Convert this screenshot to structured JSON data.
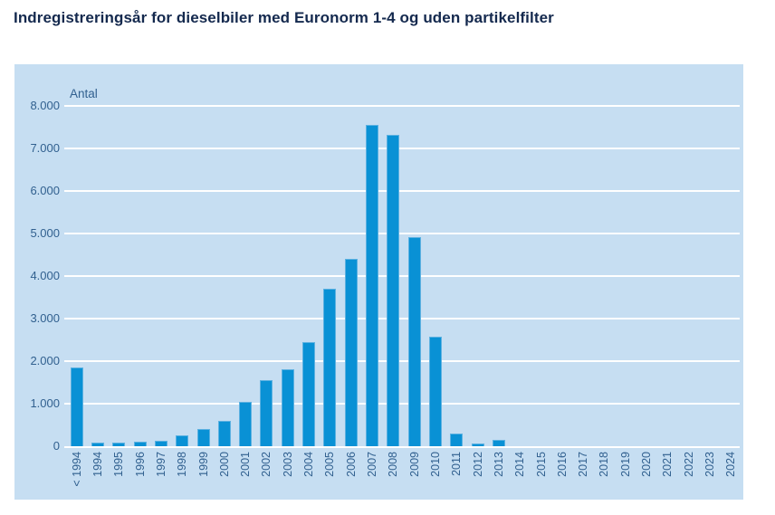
{
  "header": {
    "title": "Indregistreringsår for dieselbiler med Euronorm 1-4 og uden partikelfilter"
  },
  "colors": {
    "panel_background": "#c6def2",
    "bar_fill": "#0991d5",
    "bar_edge": "#5cb1e1",
    "gridline": "#ffffff",
    "title_text": "#14294e",
    "axis_text": "#31608f"
  },
  "chart_data": {
    "type": "bar",
    "title": "Indregistreringsår for dieselbiler med Euronorm 1-4 og uden partikelfilter",
    "xlabel": "",
    "ylabel": "Antal",
    "ylim": [
      0,
      8000
    ],
    "ytick_step": 1000,
    "ytick_labels": [
      "0",
      "1.000",
      "2.000",
      "3.000",
      "4.000",
      "5.000",
      "6.000",
      "7.000",
      "8.000"
    ],
    "grid": true,
    "legend": "none",
    "categories": [
      "< 1994",
      "1994",
      "1995",
      "1996",
      "1997",
      "1998",
      "1999",
      "2000",
      "2001",
      "2002",
      "2003",
      "2004",
      "2005",
      "2006",
      "2007",
      "2008",
      "2009",
      "2010",
      "2011",
      "2012",
      "2013",
      "2014",
      "2015",
      "2016",
      "2017",
      "2018",
      "2019",
      "2020",
      "2021",
      "2022",
      "2023",
      "2024"
    ],
    "values": [
      1850,
      80,
      80,
      100,
      130,
      260,
      410,
      600,
      1050,
      1550,
      1800,
      2450,
      3700,
      4400,
      7550,
      7330,
      4910,
      2570,
      300,
      70,
      150,
      0,
      0,
      0,
      0,
      0,
      0,
      0,
      0,
      0,
      0,
      0
    ]
  }
}
